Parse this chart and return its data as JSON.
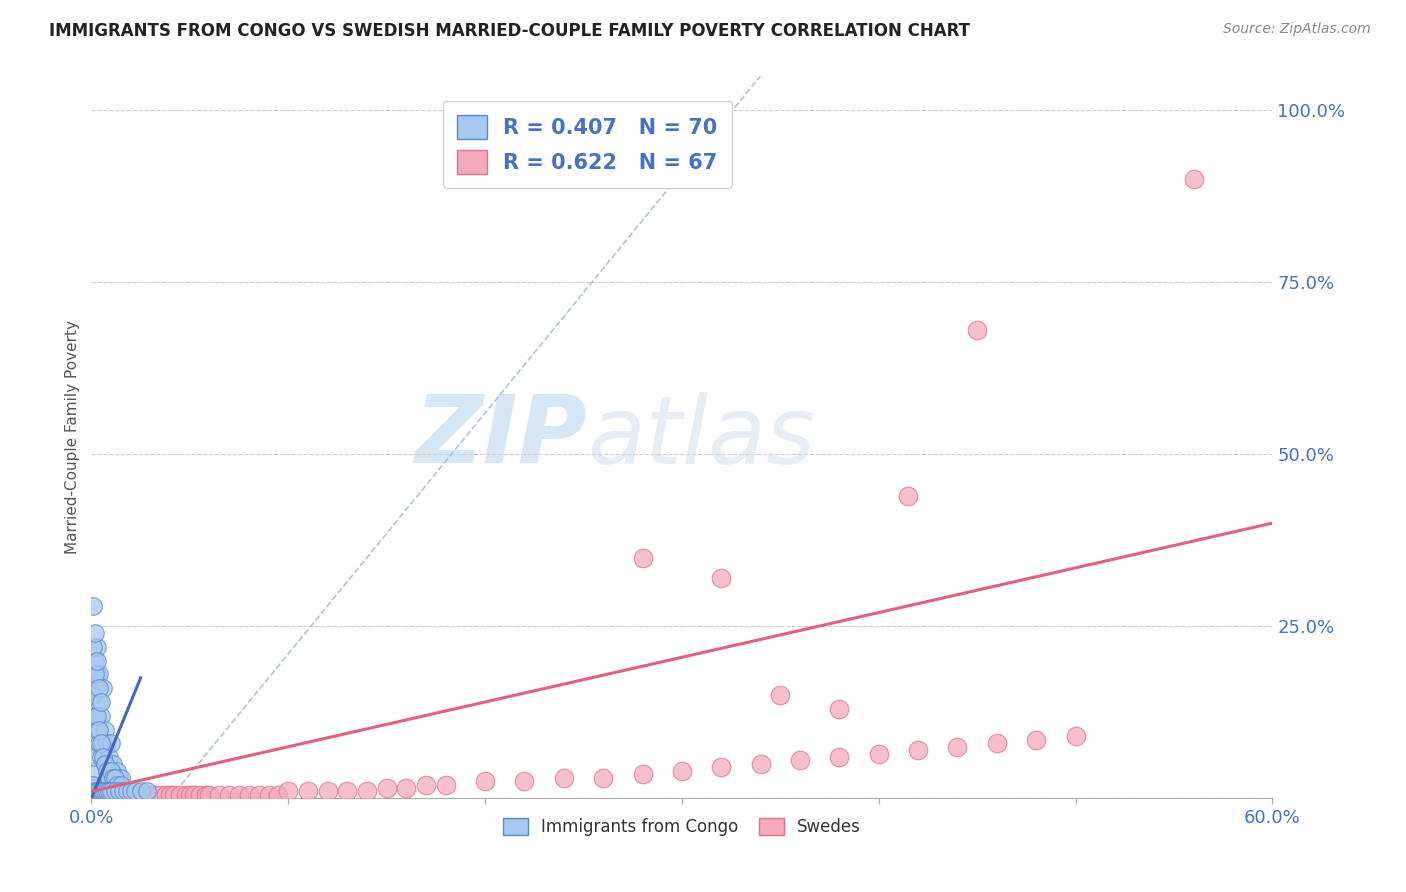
{
  "title": "IMMIGRANTS FROM CONGO VS SWEDISH MARRIED-COUPLE FAMILY POVERTY CORRELATION CHART",
  "source": "Source: ZipAtlas.com",
  "ylabel": "Married-Couple Family Poverty",
  "legend_label1": "Immigrants from Congo",
  "legend_label2": "Swedes",
  "R1": 0.407,
  "N1": 70,
  "R2": 0.622,
  "N2": 67,
  "blue_fill": "#A8C8F0",
  "blue_edge": "#5588CC",
  "pink_fill": "#F4AABB",
  "pink_edge": "#E07090",
  "blue_line_color": "#4466BB",
  "pink_line_color": "#E06080",
  "dash_color": "#AABBD4",
  "grid_color": "#CCCCCC",
  "xlim": [
    0.0,
    0.6
  ],
  "ylim": [
    0.0,
    1.05
  ],
  "ytick_vals": [
    0.0,
    0.25,
    0.5,
    0.75,
    1.0
  ],
  "ytick_labels": [
    "",
    "25.0%",
    "50.0%",
    "75.0%",
    "100.0%"
  ],
  "blue_scatter_x": [
    0.0005,
    0.001,
    0.001,
    0.0015,
    0.002,
    0.002,
    0.002,
    0.003,
    0.003,
    0.003,
    0.004,
    0.004,
    0.004,
    0.005,
    0.005,
    0.006,
    0.006,
    0.007,
    0.007,
    0.008,
    0.008,
    0.009,
    0.009,
    0.01,
    0.01,
    0.011,
    0.012,
    0.013,
    0.014,
    0.015,
    0.0005,
    0.001,
    0.001,
    0.002,
    0.002,
    0.003,
    0.003,
    0.004,
    0.004,
    0.005,
    0.005,
    0.006,
    0.007,
    0.008,
    0.009,
    0.01,
    0.011,
    0.012,
    0.013,
    0.015,
    0.0005,
    0.001,
    0.001,
    0.002,
    0.003,
    0.004,
    0.005,
    0.006,
    0.007,
    0.008,
    0.009,
    0.01,
    0.012,
    0.014,
    0.016,
    0.018,
    0.02,
    0.022,
    0.025,
    0.028
  ],
  "blue_scatter_y": [
    0.02,
    0.04,
    0.08,
    0.06,
    0.12,
    0.16,
    0.2,
    0.1,
    0.18,
    0.22,
    0.08,
    0.14,
    0.18,
    0.06,
    0.12,
    0.08,
    0.16,
    0.05,
    0.1,
    0.04,
    0.08,
    0.03,
    0.06,
    0.04,
    0.08,
    0.05,
    0.03,
    0.04,
    0.03,
    0.03,
    0.15,
    0.22,
    0.28,
    0.18,
    0.24,
    0.12,
    0.2,
    0.1,
    0.16,
    0.08,
    0.14,
    0.06,
    0.05,
    0.04,
    0.03,
    0.04,
    0.03,
    0.03,
    0.02,
    0.02,
    0.01,
    0.01,
    0.02,
    0.01,
    0.01,
    0.01,
    0.01,
    0.01,
    0.01,
    0.01,
    0.01,
    0.01,
    0.01,
    0.01,
    0.01,
    0.01,
    0.01,
    0.01,
    0.01,
    0.01
  ],
  "pink_scatter_x": [
    0.002,
    0.004,
    0.005,
    0.006,
    0.008,
    0.009,
    0.01,
    0.012,
    0.014,
    0.015,
    0.018,
    0.02,
    0.022,
    0.025,
    0.028,
    0.03,
    0.032,
    0.035,
    0.038,
    0.04,
    0.042,
    0.045,
    0.048,
    0.05,
    0.052,
    0.055,
    0.058,
    0.06,
    0.065,
    0.07,
    0.075,
    0.08,
    0.085,
    0.09,
    0.095,
    0.1,
    0.11,
    0.12,
    0.13,
    0.14,
    0.15,
    0.16,
    0.17,
    0.18,
    0.2,
    0.22,
    0.24,
    0.26,
    0.28,
    0.3,
    0.32,
    0.34,
    0.36,
    0.38,
    0.4,
    0.42,
    0.44,
    0.46,
    0.48,
    0.5,
    0.28,
    0.32,
    0.35,
    0.38,
    0.415,
    0.45,
    0.56
  ],
  "pink_scatter_y": [
    0.005,
    0.005,
    0.005,
    0.005,
    0.005,
    0.005,
    0.005,
    0.005,
    0.005,
    0.005,
    0.005,
    0.005,
    0.005,
    0.005,
    0.005,
    0.005,
    0.005,
    0.005,
    0.005,
    0.005,
    0.005,
    0.005,
    0.005,
    0.005,
    0.005,
    0.005,
    0.005,
    0.005,
    0.005,
    0.005,
    0.005,
    0.005,
    0.005,
    0.005,
    0.005,
    0.01,
    0.01,
    0.01,
    0.01,
    0.01,
    0.015,
    0.015,
    0.02,
    0.02,
    0.025,
    0.025,
    0.03,
    0.03,
    0.035,
    0.04,
    0.045,
    0.05,
    0.055,
    0.06,
    0.065,
    0.07,
    0.075,
    0.08,
    0.085,
    0.09,
    0.35,
    0.32,
    0.15,
    0.13,
    0.44,
    0.68,
    0.9
  ],
  "blue_trendline": [
    0.0,
    0.025,
    0.0,
    0.175
  ],
  "pink_trendline": [
    0.0,
    0.6,
    0.01,
    0.4
  ]
}
